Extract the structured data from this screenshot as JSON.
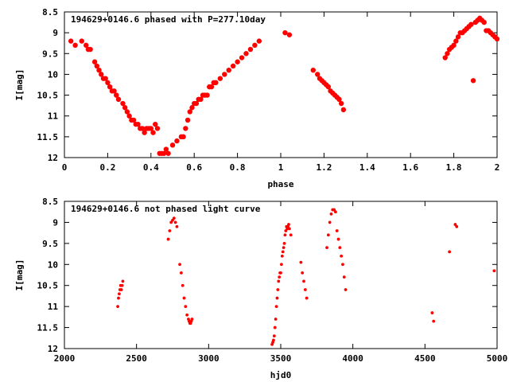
{
  "chart_data": [
    {
      "type": "scatter",
      "title": "194629+0146.6 phased with P=277.10day",
      "xlabel": "phase",
      "ylabel": "I[mag]",
      "xlim": [
        0,
        2
      ],
      "ylim": [
        12,
        8.5
      ],
      "y_inverted": true,
      "xticks": [
        0,
        0.2,
        0.4,
        0.6,
        0.8,
        1,
        1.2,
        1.4,
        1.6,
        1.8,
        2
      ],
      "xtick_labels": [
        "0",
        "0.2",
        "0.4",
        "0.6",
        "0.8",
        "1",
        "1.2",
        "1.4",
        "1.6",
        "1.8",
        "2"
      ],
      "yticks": [
        8.5,
        9,
        9.5,
        10,
        10.5,
        11,
        11.5,
        12
      ],
      "ytick_labels": [
        "8.5",
        "9",
        "9.5",
        "10",
        "10.5",
        "11",
        "11.5",
        "12"
      ],
      "grid": false,
      "marker_color": "#ff0000",
      "marker": "filled-circle",
      "x": [
        0.03,
        0.05,
        0.08,
        0.1,
        0.11,
        0.12,
        0.14,
        0.15,
        0.16,
        0.17,
        0.18,
        0.19,
        0.2,
        0.21,
        0.22,
        0.23,
        0.24,
        0.25,
        0.27,
        0.28,
        0.29,
        0.3,
        0.31,
        0.32,
        0.33,
        0.34,
        0.35,
        0.36,
        0.37,
        0.38,
        0.39,
        0.4,
        0.41,
        0.42,
        0.43,
        0.44,
        0.45,
        0.46,
        0.47,
        0.48,
        0.5,
        0.52,
        0.54,
        0.55,
        0.56,
        0.57,
        0.58,
        0.59,
        0.6,
        0.61,
        0.62,
        0.63,
        0.64,
        0.65,
        0.66,
        0.67,
        0.68,
        0.69,
        0.7,
        0.72,
        0.74,
        0.76,
        0.78,
        0.8,
        0.82,
        0.84,
        0.86,
        0.88,
        0.9,
        1.02,
        1.04,
        1.15,
        1.17,
        1.18,
        1.19,
        1.2,
        1.21,
        1.22,
        1.23,
        1.24,
        1.25,
        1.26,
        1.27,
        1.28,
        1.29,
        1.76,
        1.77,
        1.78,
        1.79,
        1.8,
        1.81,
        1.82,
        1.83,
        1.84,
        1.85,
        1.86,
        1.87,
        1.88,
        1.89,
        1.9,
        1.91,
        1.92,
        1.93,
        1.94,
        1.95,
        1.96,
        1.97,
        1.98,
        1.99,
        2.0
      ],
      "y": [
        9.2,
        9.3,
        9.2,
        9.3,
        9.4,
        9.4,
        9.7,
        9.8,
        9.9,
        10.0,
        10.1,
        10.1,
        10.2,
        10.3,
        10.4,
        10.4,
        10.5,
        10.6,
        10.7,
        10.8,
        10.9,
        11.0,
        11.1,
        11.1,
        11.2,
        11.2,
        11.3,
        11.3,
        11.4,
        11.3,
        11.3,
        11.3,
        11.4,
        11.2,
        11.3,
        11.9,
        11.9,
        11.9,
        11.8,
        11.9,
        11.7,
        11.6,
        11.5,
        11.5,
        11.3,
        11.1,
        10.9,
        10.8,
        10.7,
        10.7,
        10.6,
        10.6,
        10.5,
        10.5,
        10.5,
        10.3,
        10.3,
        10.2,
        10.2,
        10.1,
        10.0,
        9.9,
        9.8,
        9.7,
        9.6,
        9.5,
        9.4,
        9.3,
        9.2,
        9.0,
        9.05,
        9.9,
        10.0,
        10.1,
        10.15,
        10.2,
        10.25,
        10.3,
        10.4,
        10.45,
        10.5,
        10.55,
        10.6,
        10.7,
        10.85,
        9.6,
        9.5,
        9.4,
        9.35,
        9.3,
        9.2,
        9.1,
        9.0,
        9.0,
        8.95,
        8.9,
        8.85,
        8.8,
        10.15,
        8.75,
        8.7,
        8.65,
        8.7,
        8.75,
        8.95,
        8.95,
        9.0,
        9.05,
        9.1,
        9.15
      ],
      "ticks_mirrored": true
    },
    {
      "type": "scatter",
      "title": "194629+0146.6 not phased light curve",
      "xlabel": "hjd0",
      "ylabel": "I[mag]",
      "xlim": [
        2000,
        5000
      ],
      "ylim": [
        12,
        8.5
      ],
      "y_inverted": true,
      "xticks": [
        2000,
        2500,
        3000,
        3500,
        4000,
        4500,
        5000
      ],
      "xtick_labels": [
        "2000",
        "2500",
        "3000",
        "3500",
        "4000",
        "4500",
        "5000"
      ],
      "yticks": [
        8.5,
        9,
        9.5,
        10,
        10.5,
        11,
        11.5,
        12
      ],
      "ytick_labels": [
        "8.5",
        "9",
        "9.5",
        "10",
        "10.5",
        "11",
        "11.5",
        "12"
      ],
      "grid": false,
      "marker_color": "#ff0000",
      "marker": "filled-circle",
      "x": [
        2370,
        2375,
        2380,
        2385,
        2390,
        2395,
        2400,
        2405,
        2720,
        2730,
        2740,
        2750,
        2760,
        2770,
        2780,
        2800,
        2810,
        2820,
        2830,
        2840,
        2850,
        2860,
        2865,
        2870,
        2875,
        2880,
        2885,
        3440,
        3445,
        3450,
        3455,
        3460,
        3465,
        3470,
        3475,
        3480,
        3485,
        3490,
        3495,
        3500,
        3505,
        3510,
        3515,
        3520,
        3525,
        3530,
        3535,
        3540,
        3545,
        3550,
        3555,
        3560,
        3570,
        3640,
        3650,
        3660,
        3670,
        3680,
        3820,
        3830,
        3840,
        3850,
        3860,
        3870,
        3880,
        3890,
        3900,
        3910,
        3920,
        3930,
        3940,
        3950,
        4550,
        4560,
        4670,
        4710,
        4720,
        4980
      ],
      "y": [
        11.0,
        10.8,
        10.7,
        10.6,
        10.5,
        10.6,
        10.5,
        10.4,
        9.4,
        9.2,
        9.0,
        8.95,
        8.9,
        9.0,
        9.1,
        10.0,
        10.2,
        10.5,
        10.8,
        11.0,
        11.2,
        11.3,
        11.35,
        11.4,
        11.4,
        11.35,
        11.3,
        11.9,
        11.85,
        11.8,
        11.7,
        11.5,
        11.3,
        11.0,
        10.8,
        10.6,
        10.4,
        10.3,
        10.2,
        10.2,
        10.0,
        9.8,
        9.7,
        9.6,
        9.5,
        9.3,
        9.2,
        9.1,
        9.15,
        9.1,
        9.05,
        9.15,
        9.3,
        9.95,
        10.2,
        10.4,
        10.6,
        10.8,
        9.6,
        9.3,
        9.0,
        8.8,
        8.7,
        8.7,
        8.75,
        9.2,
        9.4,
        9.6,
        9.8,
        10.0,
        10.3,
        10.6,
        11.15,
        11.35,
        9.7,
        9.05,
        9.1,
        10.15
      ],
      "ticks_mirrored": true
    }
  ]
}
